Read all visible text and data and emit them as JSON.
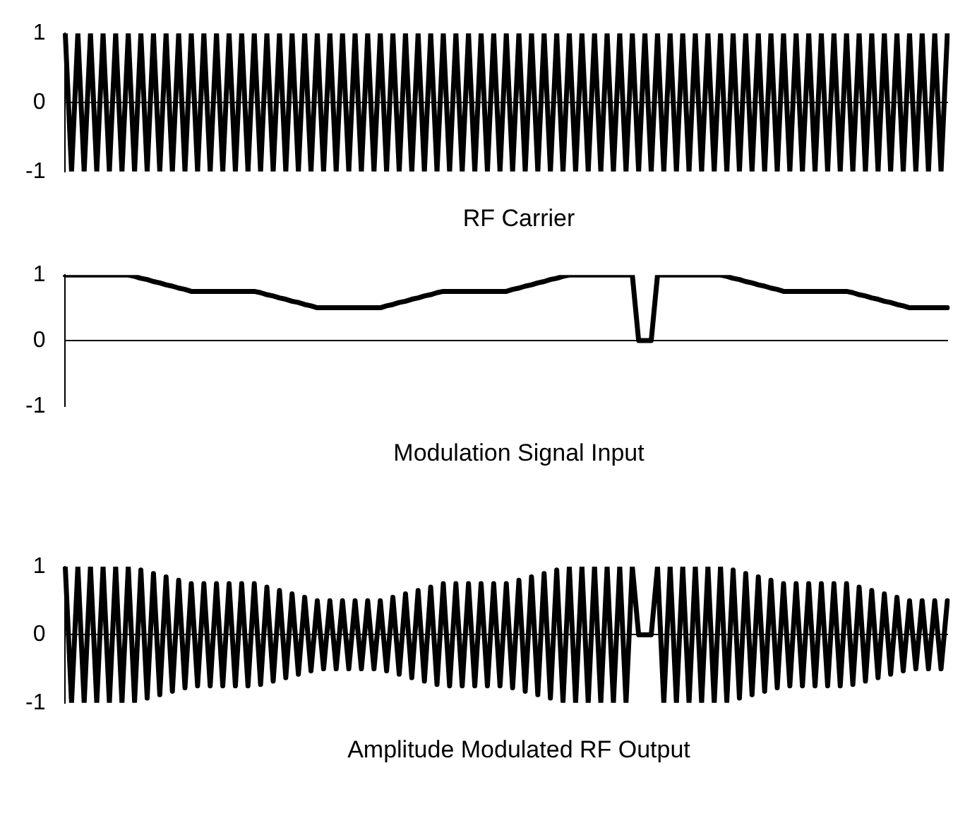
{
  "chart_data": [
    {
      "type": "line",
      "xlabel": "RF Carrier",
      "categories": [
        null,
        null,
        null,
        null,
        null,
        null,
        null,
        null,
        null,
        null,
        null,
        null,
        null,
        null,
        null,
        null,
        null,
        null,
        null,
        null,
        null,
        null,
        null,
        null,
        null,
        null,
        null,
        null,
        null,
        null,
        null,
        null,
        null,
        null,
        null,
        null,
        null,
        null,
        null,
        null,
        null,
        null,
        null,
        null,
        null,
        null,
        null,
        null,
        null,
        null,
        null,
        null,
        null,
        null,
        null,
        null,
        null,
        null,
        null,
        null,
        null,
        null,
        null,
        null,
        null,
        null,
        null,
        null,
        null,
        null,
        null,
        null,
        null,
        null,
        null,
        null,
        null,
        null,
        null,
        null,
        null,
        null,
        null,
        null,
        null,
        null,
        null,
        null,
        null,
        null,
        null,
        null,
        null,
        null,
        null,
        null,
        null,
        null,
        null,
        null,
        null,
        null,
        null,
        null,
        null,
        null,
        null,
        null,
        null,
        null,
        null,
        null,
        null,
        null,
        null,
        null,
        null,
        null,
        null,
        null,
        null,
        null,
        null,
        null,
        null,
        null,
        null,
        null,
        null,
        null,
        null,
        null,
        null,
        null,
        null,
        null,
        null,
        null,
        null,
        null,
        null
      ],
      "series": [
        {
          "color": "#000000",
          "values": [
            1,
            -1,
            1,
            -1,
            1,
            -1,
            1,
            -1,
            1,
            -1,
            1,
            -1,
            1,
            -1,
            1,
            -1,
            1,
            -1,
            1,
            -1,
            1,
            -1,
            1,
            -1,
            1,
            -1,
            1,
            -1,
            1,
            -1,
            1,
            -1,
            1,
            -1,
            1,
            -1,
            1,
            -1,
            1,
            -1,
            1,
            -1,
            1,
            -1,
            1,
            -1,
            1,
            -1,
            1,
            -1,
            1,
            -1,
            1,
            -1,
            1,
            -1,
            1,
            -1,
            1,
            -1,
            1,
            -1,
            1,
            -1,
            1,
            -1,
            1,
            -1,
            1,
            -1,
            1,
            -1,
            1,
            -1,
            1,
            -1,
            1,
            -1,
            1,
            -1,
            1,
            -1,
            1,
            -1,
            1,
            -1,
            1,
            -1,
            1,
            -1,
            1,
            -1,
            1,
            -1,
            1,
            -1,
            1,
            -1,
            1,
            -1,
            1,
            -1,
            1,
            -1,
            1,
            -1,
            1,
            -1,
            1,
            -1,
            1,
            -1,
            1,
            -1,
            1,
            -1,
            1,
            -1,
            1,
            -1,
            1,
            -1,
            1,
            -1,
            1,
            -1,
            1,
            -1,
            1,
            -1,
            1,
            -1,
            1,
            -1,
            1,
            -1,
            1,
            -1,
            1,
            -1,
            1
          ]
        }
      ],
      "ylim": [
        -1,
        1
      ],
      "yticks": [
        -1,
        0,
        1
      ],
      "tick_labels": "y",
      "marker": "none",
      "line_style": "solid"
    },
    {
      "type": "line",
      "xlabel": "Modulation Signal Input",
      "categories": [
        null,
        null,
        null,
        null,
        null,
        null,
        null,
        null,
        null,
        null,
        null,
        null,
        null,
        null,
        null,
        null,
        null,
        null,
        null,
        null,
        null,
        null,
        null,
        null,
        null,
        null,
        null,
        null,
        null,
        null,
        null,
        null,
        null,
        null,
        null,
        null,
        null,
        null,
        null,
        null,
        null,
        null,
        null,
        null,
        null,
        null,
        null,
        null,
        null,
        null,
        null,
        null,
        null,
        null,
        null,
        null,
        null,
        null,
        null,
        null,
        null,
        null,
        null,
        null,
        null,
        null,
        null,
        null,
        null,
        null,
        null,
        null,
        null,
        null,
        null,
        null,
        null,
        null,
        null,
        null,
        null,
        null,
        null,
        null,
        null,
        null,
        null,
        null,
        null,
        null,
        null,
        null,
        null,
        null,
        null,
        null,
        null,
        null,
        null,
        null,
        null,
        null,
        null,
        null,
        null,
        null,
        null,
        null,
        null,
        null,
        null,
        null,
        null,
        null,
        null,
        null,
        null,
        null,
        null,
        null,
        null,
        null,
        null,
        null,
        null,
        null,
        null,
        null,
        null,
        null,
        null,
        null,
        null,
        null,
        null,
        null,
        null,
        null,
        null,
        null,
        null
      ],
      "series": [
        {
          "color": "#000000",
          "values": [
            1,
            1,
            1,
            1,
            1,
            1,
            1,
            1,
            1,
            1,
            1,
            0.98,
            0.95,
            0.93,
            0.9,
            0.88,
            0.85,
            0.83,
            0.8,
            0.78,
            0.75,
            0.75,
            0.75,
            0.75,
            0.75,
            0.75,
            0.75,
            0.75,
            0.75,
            0.75,
            0.75,
            0.73,
            0.7,
            0.68,
            0.65,
            0.63,
            0.6,
            0.58,
            0.55,
            0.53,
            0.5,
            0.5,
            0.5,
            0.5,
            0.5,
            0.5,
            0.5,
            0.5,
            0.5,
            0.5,
            0.5,
            0.53,
            0.55,
            0.58,
            0.6,
            0.63,
            0.65,
            0.68,
            0.7,
            0.73,
            0.75,
            0.75,
            0.75,
            0.75,
            0.75,
            0.75,
            0.75,
            0.75,
            0.75,
            0.75,
            0.75,
            0.78,
            0.8,
            0.83,
            0.85,
            0.88,
            0.9,
            0.93,
            0.95,
            0.98,
            1,
            1,
            1,
            1,
            1,
            1,
            1,
            1,
            1,
            1,
            1,
            0,
            0,
            0,
            1,
            1,
            1,
            1,
            1,
            1,
            1,
            1,
            1,
            1,
            1,
            0.98,
            0.95,
            0.93,
            0.9,
            0.88,
            0.85,
            0.83,
            0.8,
            0.78,
            0.75,
            0.75,
            0.75,
            0.75,
            0.75,
            0.75,
            0.75,
            0.75,
            0.75,
            0.75,
            0.75,
            0.73,
            0.7,
            0.68,
            0.65,
            0.63,
            0.6,
            0.58,
            0.55,
            0.53,
            0.5,
            0.5,
            0.5,
            0.5,
            0.5,
            0.5,
            0.5
          ]
        }
      ],
      "ylim": [
        -1,
        1
      ],
      "yticks": [
        -1,
        0,
        1
      ],
      "tick_labels": "y",
      "marker": "none",
      "line_style": "solid"
    },
    {
      "type": "line",
      "xlabel": "Amplitude Modulated RF Output",
      "categories": [
        null,
        null,
        null,
        null,
        null,
        null,
        null,
        null,
        null,
        null,
        null,
        null,
        null,
        null,
        null,
        null,
        null,
        null,
        null,
        null,
        null,
        null,
        null,
        null,
        null,
        null,
        null,
        null,
        null,
        null,
        null,
        null,
        null,
        null,
        null,
        null,
        null,
        null,
        null,
        null,
        null,
        null,
        null,
        null,
        null,
        null,
        null,
        null,
        null,
        null,
        null,
        null,
        null,
        null,
        null,
        null,
        null,
        null,
        null,
        null,
        null,
        null,
        null,
        null,
        null,
        null,
        null,
        null,
        null,
        null,
        null,
        null,
        null,
        null,
        null,
        null,
        null,
        null,
        null,
        null,
        null,
        null,
        null,
        null,
        null,
        null,
        null,
        null,
        null,
        null,
        null,
        null,
        null,
        null,
        null,
        null,
        null,
        null,
        null,
        null,
        null,
        null,
        null,
        null,
        null,
        null,
        null,
        null,
        null,
        null,
        null,
        null,
        null,
        null,
        null,
        null,
        null,
        null,
        null,
        null,
        null,
        null,
        null,
        null,
        null,
        null,
        null,
        null,
        null,
        null,
        null,
        null,
        null,
        null,
        null,
        null,
        null,
        null,
        null,
        null,
        null
      ],
      "series": [
        {
          "color": "#000000",
          "values": [
            1,
            -1,
            1,
            -1,
            1,
            -1,
            1,
            -1,
            1,
            -1,
            1,
            -0.98,
            0.95,
            -0.93,
            0.9,
            -0.88,
            0.85,
            -0.83,
            0.8,
            -0.78,
            0.75,
            -0.75,
            0.75,
            -0.75,
            0.75,
            -0.75,
            0.75,
            -0.75,
            0.75,
            -0.75,
            0.75,
            -0.73,
            0.7,
            -0.68,
            0.65,
            -0.63,
            0.6,
            -0.58,
            0.55,
            -0.53,
            0.5,
            -0.5,
            0.5,
            -0.5,
            0.5,
            -0.5,
            0.5,
            -0.5,
            0.5,
            -0.5,
            0.5,
            -0.53,
            0.55,
            -0.58,
            0.6,
            -0.63,
            0.65,
            -0.68,
            0.7,
            -0.73,
            0.75,
            -0.75,
            0.75,
            -0.75,
            0.75,
            -0.75,
            0.75,
            -0.75,
            0.75,
            -0.75,
            0.75,
            -0.78,
            0.8,
            -0.83,
            0.85,
            -0.88,
            0.9,
            -0.93,
            0.95,
            -0.98,
            1,
            -1,
            1,
            -1,
            1,
            -1,
            1,
            -1,
            1,
            -1,
            1,
            0,
            0,
            0,
            1,
            -1,
            1,
            -1,
            1,
            -1,
            1,
            -1,
            1,
            -1,
            1,
            -0.98,
            0.95,
            -0.93,
            0.9,
            -0.88,
            0.85,
            -0.83,
            0.8,
            -0.78,
            0.75,
            -0.75,
            0.75,
            -0.75,
            0.75,
            -0.75,
            0.75,
            -0.75,
            0.75,
            -0.75,
            0.75,
            -0.73,
            0.7,
            -0.68,
            0.65,
            -0.63,
            0.6,
            -0.58,
            0.55,
            -0.53,
            0.5,
            -0.5,
            0.5,
            -0.5,
            0.5,
            -0.5,
            0.5
          ]
        }
      ],
      "ylim": [
        -1,
        1
      ],
      "yticks": [
        -1,
        0,
        1
      ],
      "tick_labels": "y",
      "marker": "none",
      "line_style": "solid"
    }
  ]
}
